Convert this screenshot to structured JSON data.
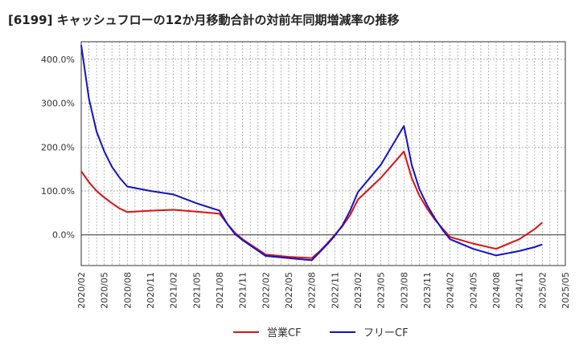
{
  "chart_data": {
    "type": "line",
    "title": "[6199]  キャッシュフローの12か月移動合計の対前年同期増減率の推移",
    "xlabel": "",
    "ylabel": "",
    "x_ticks": [
      "2020/02",
      "2020/05",
      "2020/08",
      "2020/11",
      "2021/02",
      "2021/05",
      "2021/08",
      "2021/11",
      "2022/02",
      "2022/05",
      "2022/08",
      "2022/11",
      "2023/02",
      "2023/05",
      "2023/08",
      "2023/11",
      "2024/02",
      "2024/05",
      "2024/08",
      "2024/11",
      "2025/02",
      "2025/05"
    ],
    "y_ticks": [
      "0.0%",
      "100.0%",
      "200.0%",
      "300.0%",
      "400.0%"
    ],
    "y_tick_values": [
      0,
      100,
      200,
      300,
      400
    ],
    "ylim": [
      -70,
      440
    ],
    "grid": true,
    "legend_position": "bottom",
    "series": [
      {
        "name": "営業CF",
        "color": "#dd1111",
        "points": [
          [
            "2020/02",
            145
          ],
          [
            "2020/03",
            120
          ],
          [
            "2020/04",
            100
          ],
          [
            "2020/05",
            85
          ],
          [
            "2020/06",
            72
          ],
          [
            "2020/07",
            60
          ],
          [
            "2020/08",
            52
          ],
          [
            "2020/11",
            55
          ],
          [
            "2021/02",
            57
          ],
          [
            "2021/05",
            53
          ],
          [
            "2021/08",
            48
          ],
          [
            "2021/09",
            25
          ],
          [
            "2021/10",
            5
          ],
          [
            "2021/11",
            -10
          ],
          [
            "2022/02",
            -45
          ],
          [
            "2022/05",
            -50
          ],
          [
            "2022/08",
            -53
          ],
          [
            "2022/09",
            -38
          ],
          [
            "2022/10",
            -20
          ],
          [
            "2022/11",
            0
          ],
          [
            "2022/12",
            20
          ],
          [
            "2023/01",
            45
          ],
          [
            "2023/02",
            80
          ],
          [
            "2023/05",
            130
          ],
          [
            "2023/08",
            190
          ],
          [
            "2023/09",
            130
          ],
          [
            "2023/10",
            90
          ],
          [
            "2023/11",
            60
          ],
          [
            "2023/12",
            35
          ],
          [
            "2024/01",
            15
          ],
          [
            "2024/02",
            -5
          ],
          [
            "2024/05",
            -20
          ],
          [
            "2024/08",
            -32
          ],
          [
            "2024/11",
            -10
          ],
          [
            "2025/01",
            13
          ],
          [
            "2025/02",
            28
          ]
        ]
      },
      {
        "name": "フリーCF",
        "color": "#1111cc",
        "points": [
          [
            "2020/02",
            432
          ],
          [
            "2020/03",
            310
          ],
          [
            "2020/04",
            235
          ],
          [
            "2020/05",
            190
          ],
          [
            "2020/06",
            155
          ],
          [
            "2020/07",
            130
          ],
          [
            "2020/08",
            110
          ],
          [
            "2020/11",
            100
          ],
          [
            "2021/02",
            92
          ],
          [
            "2021/05",
            72
          ],
          [
            "2021/08",
            55
          ],
          [
            "2021/09",
            25
          ],
          [
            "2021/10",
            2
          ],
          [
            "2021/11",
            -12
          ],
          [
            "2022/02",
            -48
          ],
          [
            "2022/05",
            -53
          ],
          [
            "2022/08",
            -58
          ],
          [
            "2022/09",
            -40
          ],
          [
            "2022/10",
            -22
          ],
          [
            "2022/11",
            -2
          ],
          [
            "2022/12",
            22
          ],
          [
            "2023/01",
            55
          ],
          [
            "2023/02",
            97
          ],
          [
            "2023/05",
            160
          ],
          [
            "2023/08",
            248
          ],
          [
            "2023/09",
            160
          ],
          [
            "2023/10",
            105
          ],
          [
            "2023/11",
            68
          ],
          [
            "2023/12",
            38
          ],
          [
            "2024/01",
            12
          ],
          [
            "2024/02",
            -10
          ],
          [
            "2024/05",
            -32
          ],
          [
            "2024/08",
            -47
          ],
          [
            "2024/11",
            -37
          ],
          [
            "2025/01",
            -28
          ],
          [
            "2025/02",
            -22
          ]
        ]
      }
    ]
  }
}
